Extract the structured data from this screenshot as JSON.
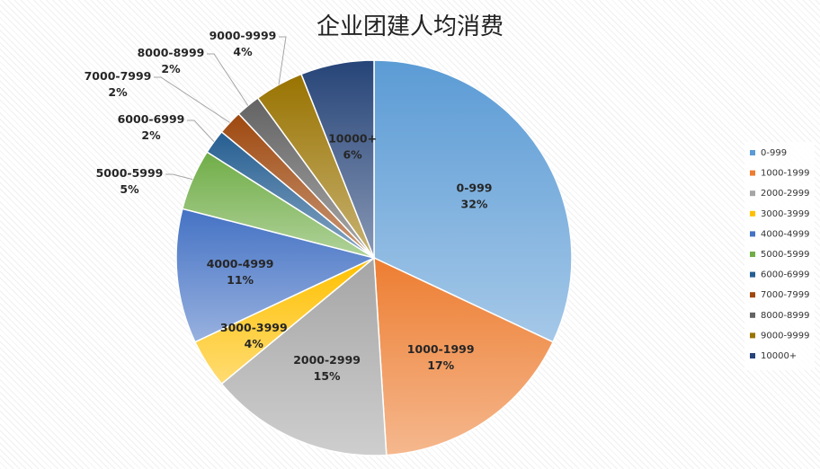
{
  "chart_data": {
    "type": "pie",
    "title": "企业团建人均消费",
    "categories": [
      "0-999",
      "1000-1999",
      "2000-2999",
      "3000-3999",
      "4000-4999",
      "5000-5999",
      "6000-6999",
      "7000-7999",
      "8000-8999",
      "9000-9999",
      "10000+"
    ],
    "values": [
      32,
      17,
      15,
      4,
      11,
      5,
      2,
      2,
      2,
      4,
      6
    ],
    "labels": [
      "32%",
      "17%",
      "15%",
      "4%",
      "11%",
      "5%",
      "2%",
      "2%",
      "2%",
      "4%",
      "6%"
    ],
    "colors": [
      "#5b9bd5",
      "#ed7d31",
      "#a5a5a5",
      "#ffc000",
      "#4472c4",
      "#70ad47",
      "#255e91",
      "#9e480e",
      "#636363",
      "#997300",
      "#264478"
    ],
    "legend": "right"
  }
}
